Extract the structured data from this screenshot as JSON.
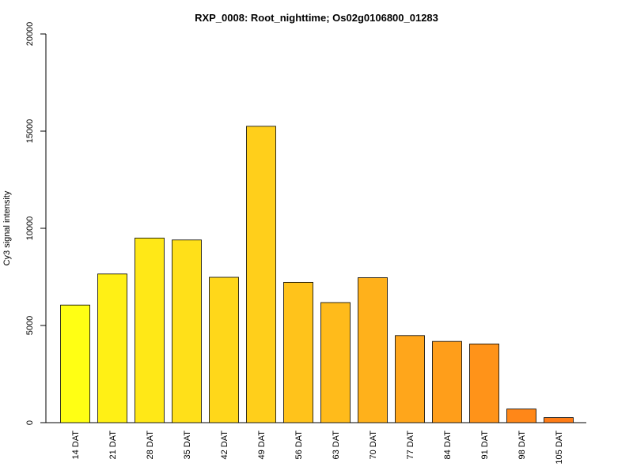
{
  "chart_data": {
    "type": "bar",
    "title": "RXP_0008: Root_nighttime; Os02g0106800_01283",
    "xlabel": "",
    "ylabel": "Cy3 signal intensity",
    "ylim": [
      0,
      20000
    ],
    "yticks": [
      0,
      5000,
      10000,
      15000,
      20000
    ],
    "grid": false,
    "categories": [
      "14 DAT",
      "21 DAT",
      "28 DAT",
      "35 DAT",
      "42 DAT",
      "49 DAT",
      "56 DAT",
      "63 DAT",
      "70 DAT",
      "77 DAT",
      "84 DAT",
      "91 DAT",
      "98 DAT",
      "105 DAT"
    ],
    "values": [
      6050,
      7650,
      9500,
      9400,
      7480,
      15250,
      7220,
      6180,
      7460,
      4480,
      4180,
      4050,
      700,
      260
    ],
    "colors": [
      "#ffff14",
      "#fff015",
      "#ffe817",
      "#ffe019",
      "#ffd71a",
      "#ffcf1b",
      "#ffc31b",
      "#ffbb1b",
      "#ffb11b",
      "#ffa61b",
      "#ff9e1a",
      "#ff9319",
      "#ff8718",
      "#ff7c16"
    ]
  }
}
